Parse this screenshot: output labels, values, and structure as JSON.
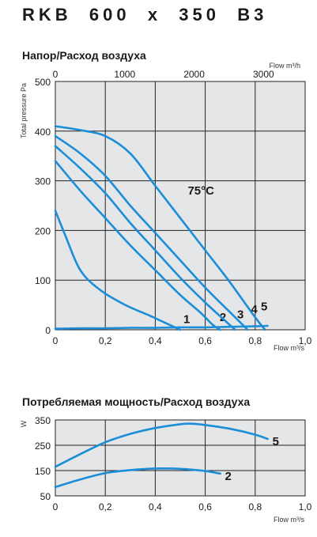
{
  "title": "RKB  600  x  350  B3",
  "chart_data": [
    {
      "type": "line",
      "title": "Напор/Расход воздуха",
      "xlabel": "Flow m³/s",
      "ylabel": "Total pressure Pa",
      "x2label": "Flow m³/h",
      "xlim": [
        0,
        1.0
      ],
      "ylim": [
        0,
        500
      ],
      "x2lim": [
        0,
        3600
      ],
      "xticks": [
        "0",
        "0,2",
        "0,4",
        "0,6",
        "0,8",
        "1,0"
      ],
      "yticks": [
        "0",
        "100",
        "200",
        "300",
        "400",
        "500"
      ],
      "x2ticks": [
        "0",
        "1000",
        "2000",
        "3000"
      ],
      "grid": true,
      "annotations": [
        "75°C"
      ],
      "series": [
        {
          "name": "1",
          "x": [
            0,
            0.04,
            0.1,
            0.18,
            0.28,
            0.38,
            0.44,
            0.5
          ],
          "y": [
            240,
            190,
            120,
            80,
            50,
            28,
            14,
            0
          ]
        },
        {
          "name": "2",
          "x": [
            0,
            0.1,
            0.2,
            0.3,
            0.4,
            0.5,
            0.58,
            0.63,
            0.66
          ],
          "y": [
            340,
            280,
            225,
            170,
            120,
            70,
            35,
            10,
            0
          ]
        },
        {
          "name": "3",
          "x": [
            0,
            0.1,
            0.2,
            0.3,
            0.4,
            0.5,
            0.6,
            0.68,
            0.72
          ],
          "y": [
            370,
            325,
            275,
            215,
            160,
            105,
            55,
            18,
            0
          ]
        },
        {
          "name": "4",
          "x": [
            0,
            0.1,
            0.2,
            0.3,
            0.4,
            0.5,
            0.6,
            0.7,
            0.77
          ],
          "y": [
            390,
            355,
            310,
            250,
            195,
            140,
            85,
            35,
            0
          ]
        },
        {
          "name": "5",
          "x": [
            0,
            0.1,
            0.2,
            0.3,
            0.4,
            0.5,
            0.6,
            0.7,
            0.8,
            0.84
          ],
          "y": [
            410,
            402,
            390,
            355,
            290,
            225,
            160,
            95,
            25,
            0
          ]
        },
        {
          "name": "",
          "x": [
            0,
            0.1,
            0.2,
            0.3,
            0.4,
            0.5,
            0.6,
            0.7,
            0.8,
            0.85
          ],
          "y": [
            2,
            3,
            3,
            4,
            4,
            5,
            5,
            6,
            7,
            8
          ]
        }
      ]
    },
    {
      "type": "line",
      "title": "Потребляемая мощность/Расход воздуха",
      "xlabel": "Flow m³/s",
      "ylabel": "W",
      "xlim": [
        0,
        1.0
      ],
      "ylim": [
        50,
        350
      ],
      "xticks": [
        "0",
        "0,2",
        "0,4",
        "0,6",
        "0,8",
        "1,0"
      ],
      "yticks": [
        "50",
        "150",
        "250",
        "350"
      ],
      "grid": true,
      "series": [
        {
          "name": "5",
          "x": [
            0,
            0.1,
            0.2,
            0.3,
            0.4,
            0.5,
            0.55,
            0.6,
            0.7,
            0.8,
            0.85
          ],
          "y": [
            165,
            215,
            262,
            295,
            318,
            333,
            335,
            330,
            315,
            292,
            275
          ]
        },
        {
          "name": "2",
          "x": [
            0,
            0.1,
            0.2,
            0.3,
            0.4,
            0.5,
            0.6,
            0.66
          ],
          "y": [
            85,
            115,
            140,
            152,
            158,
            157,
            148,
            138
          ]
        }
      ]
    }
  ]
}
